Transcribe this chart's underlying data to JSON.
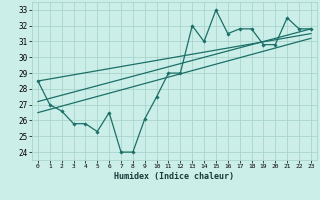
{
  "xlabel": "Humidex (Indice chaleur)",
  "bg_color": "#cceee8",
  "grid_color": "#aad4cc",
  "line_color": "#1a7068",
  "x_data": [
    0,
    1,
    2,
    3,
    4,
    5,
    6,
    7,
    8,
    9,
    10,
    11,
    12,
    13,
    14,
    15,
    16,
    17,
    18,
    19,
    20,
    21,
    22,
    23
  ],
  "y_data": [
    28.5,
    27.0,
    26.6,
    25.8,
    25.8,
    25.3,
    26.5,
    24.0,
    24.0,
    26.1,
    27.5,
    29.0,
    29.0,
    32.0,
    31.0,
    33.0,
    31.5,
    31.8,
    31.8,
    30.8,
    30.8,
    32.5,
    31.8,
    31.8
  ],
  "trend1_x": [
    0,
    23
  ],
  "trend1_y": [
    26.5,
    31.2
  ],
  "trend2_x": [
    0,
    23
  ],
  "trend2_y": [
    27.2,
    31.8
  ],
  "trend3_x": [
    0,
    23
  ],
  "trend3_y": [
    28.5,
    31.5
  ],
  "ylim": [
    23.5,
    33.5
  ],
  "xlim": [
    -0.5,
    23.5
  ],
  "yticks": [
    24,
    25,
    26,
    27,
    28,
    29,
    30,
    31,
    32,
    33
  ],
  "xticks": [
    0,
    1,
    2,
    3,
    4,
    5,
    6,
    7,
    8,
    9,
    10,
    11,
    12,
    13,
    14,
    15,
    16,
    17,
    18,
    19,
    20,
    21,
    22,
    23
  ],
  "xtick_labels": [
    "0",
    "1",
    "2",
    "3",
    "4",
    "5",
    "6",
    "7",
    "8",
    "9",
    "10",
    "11",
    "12",
    "13",
    "14",
    "15",
    "16",
    "17",
    "18",
    "19",
    "20",
    "21",
    "22",
    "23"
  ]
}
